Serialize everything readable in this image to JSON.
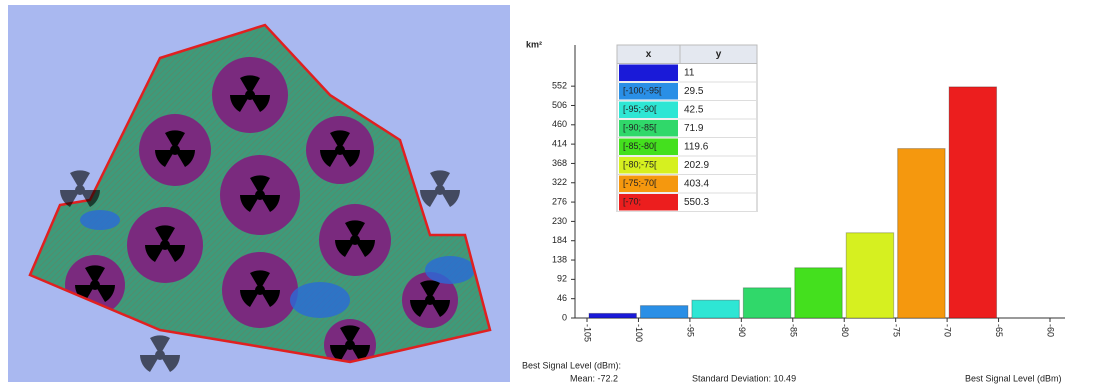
{
  "chart_data": {
    "type": "histogram",
    "y_label": "km²",
    "x_label": "Best Signal Level (dBm)",
    "stats_title": "Best Signal Level (dBm):",
    "mean": "Mean: -72.2",
    "std": "Standard Deviation: 10.49",
    "bins": [
      -105,
      -100,
      -95,
      -90,
      -85,
      -80,
      -75,
      -70,
      -65
    ],
    "values": [
      11,
      29.5,
      42.5,
      71.9,
      119.6,
      202.9,
      403.4,
      550.3
    ],
    "colors": [
      "#1a1ad8",
      "#2a8fe6",
      "#2ee6d4",
      "#30d86a",
      "#44e01e",
      "#d6f020",
      "#f5980e",
      "#ec1e1e"
    ],
    "table": {
      "headers": [
        "x",
        "y"
      ],
      "labels": [
        null,
        "[-100;-95[",
        "[-95;-90[",
        "[-90;-85[",
        "[-85;-80[",
        "[-80;-75[",
        "[-75;-70[",
        "[-70;"
      ]
    },
    "xlim": [
      -105,
      -60
    ],
    "xticks": [
      -105,
      -100,
      -95,
      -90,
      -85,
      -80,
      -75,
      -70,
      -65,
      -60
    ],
    "ylim": [
      0,
      650
    ],
    "yticks": [
      0,
      46,
      92,
      138,
      184,
      230,
      276,
      322,
      368,
      414,
      460,
      506,
      552
    ]
  }
}
